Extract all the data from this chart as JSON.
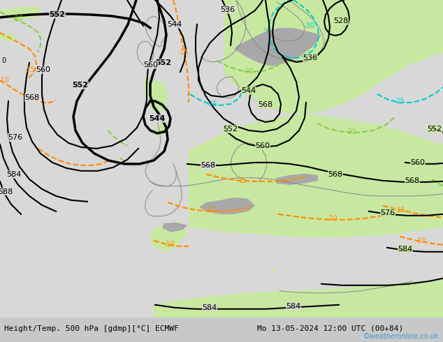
{
  "title_left": "Height/Temp. 500 hPa [gdmp][°C] ECMWF",
  "title_right": "Mo 13-05-2024 12:00 UTC (00+84)",
  "watermark": "©weatheronline.co.uk",
  "temp_warm_color": "#ff8c00",
  "temp_cold_color": "#00cccc",
  "temp_green_color": "#88cc44",
  "figsize": [
    6.34,
    4.9
  ],
  "dpi": 100
}
